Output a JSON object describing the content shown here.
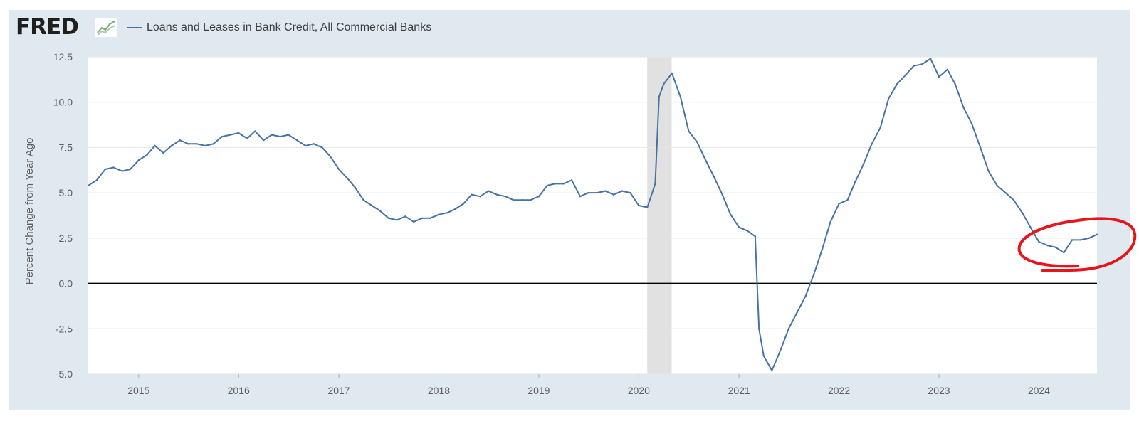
{
  "brand": {
    "logo_text": "FRED",
    "logo_icon": "fred-graph-icon"
  },
  "chart_data": {
    "type": "line",
    "title": "",
    "ylabel": "Percent Change from Year Ago",
    "xlabel": "",
    "ylim": [
      -5.0,
      12.5
    ],
    "xlim": [
      "2014-07-01",
      "2024-07-31"
    ],
    "y_ticks": [
      "12.5",
      "10.0",
      "7.5",
      "5.0",
      "2.5",
      "0.0",
      "-2.5",
      "-5.0"
    ],
    "x_ticks": [
      "2015",
      "2016",
      "2017",
      "2018",
      "2019",
      "2020",
      "2021",
      "2022",
      "2023",
      "2024"
    ],
    "grid": "horizontal",
    "zero_line": true,
    "recession_shading": [
      "2020-02-01",
      "2020-04-30"
    ],
    "annotation": "red hand-drawn circle around 2024 values",
    "colors": {
      "series": "#4572a7",
      "recession": "#e1e1e1",
      "zero_line": "#000000",
      "annotation": "#e8141c",
      "frame": "#e1e9f0"
    },
    "series": [
      {
        "name": "Loans and Leases in Bank Credit, All Commercial Banks",
        "points": [
          [
            "2014-07-01",
            5.4
          ],
          [
            "2014-08-01",
            5.7
          ],
          [
            "2014-09-01",
            6.3
          ],
          [
            "2014-10-01",
            6.4
          ],
          [
            "2014-11-01",
            6.2
          ],
          [
            "2014-12-01",
            6.3
          ],
          [
            "2015-01-01",
            6.8
          ],
          [
            "2015-02-01",
            7.1
          ],
          [
            "2015-03-01",
            7.6
          ],
          [
            "2015-04-01",
            7.2
          ],
          [
            "2015-05-01",
            7.6
          ],
          [
            "2015-06-01",
            7.9
          ],
          [
            "2015-07-01",
            7.7
          ],
          [
            "2015-08-01",
            7.7
          ],
          [
            "2015-09-01",
            7.6
          ],
          [
            "2015-10-01",
            7.7
          ],
          [
            "2015-11-01",
            8.1
          ],
          [
            "2015-12-01",
            8.2
          ],
          [
            "2016-01-01",
            8.3
          ],
          [
            "2016-02-01",
            8.0
          ],
          [
            "2016-03-01",
            8.4
          ],
          [
            "2016-04-01",
            7.9
          ],
          [
            "2016-05-01",
            8.2
          ],
          [
            "2016-06-01",
            8.1
          ],
          [
            "2016-07-01",
            8.2
          ],
          [
            "2016-08-01",
            7.9
          ],
          [
            "2016-09-01",
            7.6
          ],
          [
            "2016-10-01",
            7.7
          ],
          [
            "2016-11-01",
            7.5
          ],
          [
            "2016-12-01",
            7.0
          ],
          [
            "2017-01-01",
            6.3
          ],
          [
            "2017-02-01",
            5.8
          ],
          [
            "2017-03-01",
            5.3
          ],
          [
            "2017-04-01",
            4.6
          ],
          [
            "2017-05-01",
            4.3
          ],
          [
            "2017-06-01",
            4.0
          ],
          [
            "2017-07-01",
            3.6
          ],
          [
            "2017-08-01",
            3.5
          ],
          [
            "2017-09-01",
            3.7
          ],
          [
            "2017-10-01",
            3.4
          ],
          [
            "2017-11-01",
            3.6
          ],
          [
            "2017-12-01",
            3.6
          ],
          [
            "2018-01-01",
            3.8
          ],
          [
            "2018-02-01",
            3.9
          ],
          [
            "2018-03-01",
            4.1
          ],
          [
            "2018-04-01",
            4.4
          ],
          [
            "2018-05-01",
            4.9
          ],
          [
            "2018-06-01",
            4.8
          ],
          [
            "2018-07-01",
            5.1
          ],
          [
            "2018-08-01",
            4.9
          ],
          [
            "2018-09-01",
            4.8
          ],
          [
            "2018-10-01",
            4.6
          ],
          [
            "2018-11-01",
            4.6
          ],
          [
            "2018-12-01",
            4.6
          ],
          [
            "2019-01-01",
            4.8
          ],
          [
            "2019-02-01",
            5.4
          ],
          [
            "2019-03-01",
            5.5
          ],
          [
            "2019-04-01",
            5.5
          ],
          [
            "2019-05-01",
            5.7
          ],
          [
            "2019-06-01",
            4.8
          ],
          [
            "2019-07-01",
            5.0
          ],
          [
            "2019-08-01",
            5.0
          ],
          [
            "2019-09-01",
            5.1
          ],
          [
            "2019-10-01",
            4.9
          ],
          [
            "2019-11-01",
            5.1
          ],
          [
            "2019-12-01",
            5.0
          ],
          [
            "2020-01-01",
            4.3
          ],
          [
            "2020-02-01",
            4.2
          ],
          [
            "2020-03-01",
            5.5
          ],
          [
            "2020-03-15",
            10.3
          ],
          [
            "2020-04-01",
            11.0
          ],
          [
            "2020-05-01",
            11.6
          ],
          [
            "2020-06-01",
            10.3
          ],
          [
            "2020-07-01",
            8.4
          ],
          [
            "2020-08-01",
            7.8
          ],
          [
            "2020-09-01",
            6.8
          ],
          [
            "2020-10-01",
            5.9
          ],
          [
            "2020-11-01",
            4.9
          ],
          [
            "2020-12-01",
            3.8
          ],
          [
            "2021-01-01",
            3.1
          ],
          [
            "2021-02-01",
            2.9
          ],
          [
            "2021-03-01",
            2.6
          ],
          [
            "2021-03-15",
            -2.5
          ],
          [
            "2021-04-01",
            -4.0
          ],
          [
            "2021-05-01",
            -4.8
          ],
          [
            "2021-06-01",
            -3.7
          ],
          [
            "2021-07-01",
            -2.5
          ],
          [
            "2021-08-01",
            -1.6
          ],
          [
            "2021-09-01",
            -0.7
          ],
          [
            "2021-10-01",
            0.5
          ],
          [
            "2021-11-01",
            1.9
          ],
          [
            "2021-12-01",
            3.4
          ],
          [
            "2022-01-01",
            4.4
          ],
          [
            "2022-02-01",
            4.6
          ],
          [
            "2022-03-01",
            5.6
          ],
          [
            "2022-04-01",
            6.6
          ],
          [
            "2022-05-01",
            7.7
          ],
          [
            "2022-06-01",
            8.6
          ],
          [
            "2022-07-01",
            10.2
          ],
          [
            "2022-08-01",
            11.0
          ],
          [
            "2022-09-01",
            11.5
          ],
          [
            "2022-10-01",
            12.0
          ],
          [
            "2022-11-01",
            12.1
          ],
          [
            "2022-12-01",
            12.4
          ],
          [
            "2023-01-01",
            11.4
          ],
          [
            "2023-02-01",
            11.8
          ],
          [
            "2023-03-01",
            11.0
          ],
          [
            "2023-04-01",
            9.7
          ],
          [
            "2023-05-01",
            8.8
          ],
          [
            "2023-06-01",
            7.5
          ],
          [
            "2023-07-01",
            6.2
          ],
          [
            "2023-08-01",
            5.4
          ],
          [
            "2023-09-01",
            5.0
          ],
          [
            "2023-10-01",
            4.6
          ],
          [
            "2023-11-01",
            3.9
          ],
          [
            "2023-12-01",
            3.1
          ],
          [
            "2024-01-01",
            2.3
          ],
          [
            "2024-02-01",
            2.1
          ],
          [
            "2024-03-01",
            2.0
          ],
          [
            "2024-04-01",
            1.7
          ],
          [
            "2024-05-01",
            2.4
          ],
          [
            "2024-06-01",
            2.4
          ],
          [
            "2024-07-01",
            2.5
          ],
          [
            "2024-07-31",
            2.7
          ]
        ]
      }
    ]
  }
}
